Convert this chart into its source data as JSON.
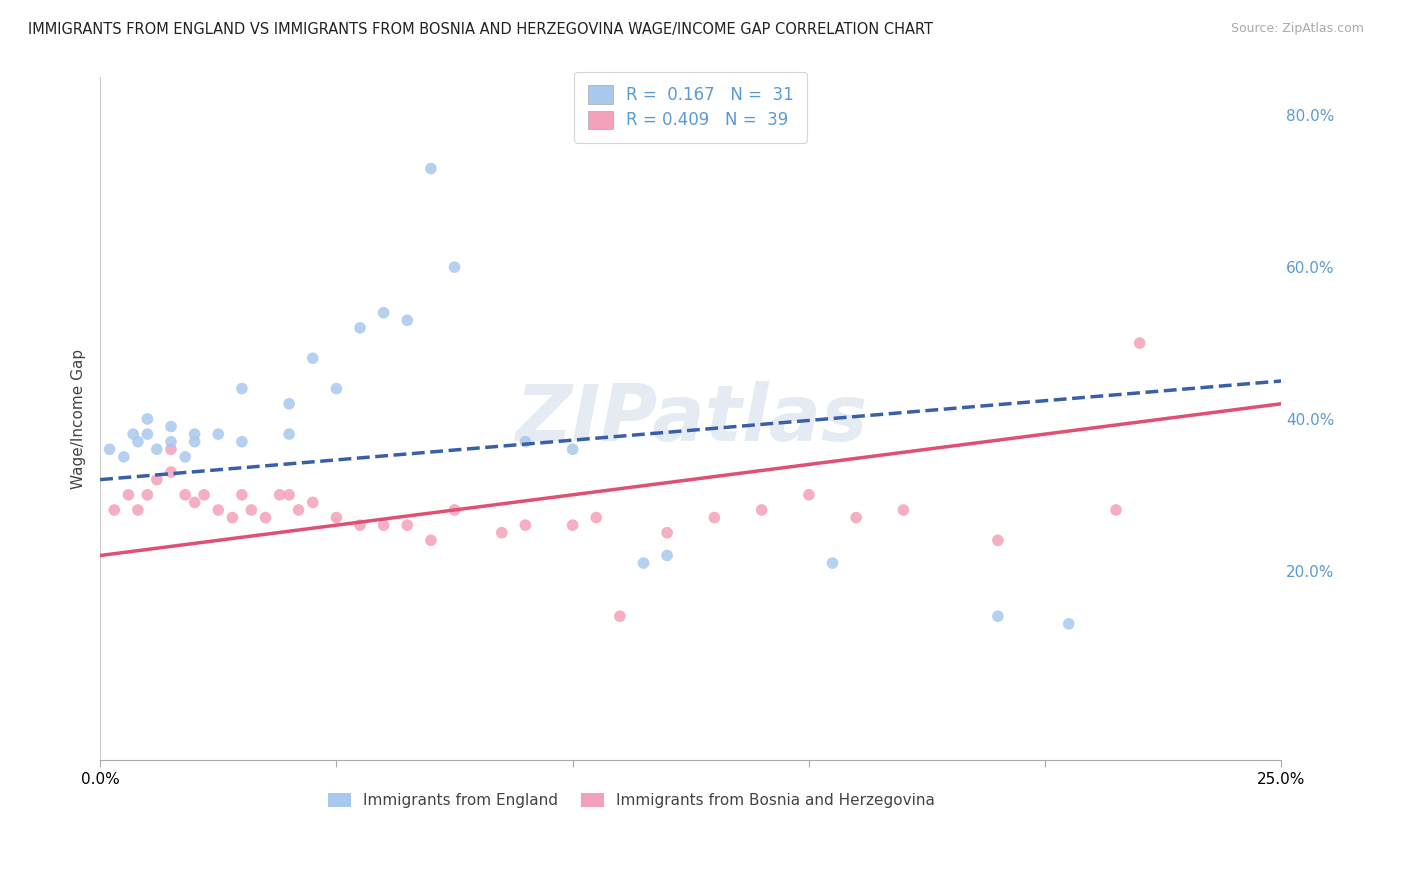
{
  "title": "IMMIGRANTS FROM ENGLAND VS IMMIGRANTS FROM BOSNIA AND HERZEGOVINA WAGE/INCOME GAP CORRELATION CHART",
  "source": "Source: ZipAtlas.com",
  "ylabel": "Wage/Income Gap",
  "xlim": [
    0.0,
    0.25
  ],
  "ylim": [
    -0.05,
    0.85
  ],
  "yticks": [
    0.0,
    0.2,
    0.4,
    0.6,
    0.8
  ],
  "yticklabels": [
    "",
    "20.0%",
    "40.0%",
    "60.0%",
    "80.0%"
  ],
  "watermark": "ZIPatlas",
  "legend_R1": "0.167",
  "legend_N1": "31",
  "legend_R2": "0.409",
  "legend_N2": "39",
  "color_england": "#a8c8ee",
  "color_bosnia": "#f4a0b8",
  "line_color_england": "#3a5faa",
  "line_color_bosnia": "#e05070",
  "scatter_england_x": [
    0.002,
    0.005,
    0.007,
    0.008,
    0.01,
    0.01,
    0.012,
    0.015,
    0.015,
    0.018,
    0.02,
    0.02,
    0.025,
    0.03,
    0.03,
    0.04,
    0.04,
    0.045,
    0.05,
    0.055,
    0.06,
    0.065,
    0.07,
    0.075,
    0.09,
    0.1,
    0.115,
    0.12,
    0.155,
    0.19,
    0.205
  ],
  "scatter_england_y": [
    0.36,
    0.35,
    0.38,
    0.37,
    0.38,
    0.4,
    0.36,
    0.37,
    0.39,
    0.35,
    0.37,
    0.38,
    0.38,
    0.37,
    0.44,
    0.38,
    0.42,
    0.48,
    0.44,
    0.52,
    0.54,
    0.53,
    0.73,
    0.6,
    0.37,
    0.36,
    0.21,
    0.22,
    0.21,
    0.14,
    0.13
  ],
  "scatter_bosnia_x": [
    0.003,
    0.006,
    0.008,
    0.01,
    0.012,
    0.015,
    0.015,
    0.018,
    0.02,
    0.022,
    0.025,
    0.028,
    0.03,
    0.032,
    0.035,
    0.038,
    0.04,
    0.042,
    0.045,
    0.05,
    0.055,
    0.06,
    0.065,
    0.07,
    0.075,
    0.085,
    0.09,
    0.1,
    0.105,
    0.11,
    0.12,
    0.13,
    0.14,
    0.15,
    0.16,
    0.17,
    0.19,
    0.215,
    0.22
  ],
  "scatter_bosnia_y": [
    0.28,
    0.3,
    0.28,
    0.3,
    0.32,
    0.36,
    0.33,
    0.3,
    0.29,
    0.3,
    0.28,
    0.27,
    0.3,
    0.28,
    0.27,
    0.3,
    0.3,
    0.28,
    0.29,
    0.27,
    0.26,
    0.26,
    0.26,
    0.24,
    0.28,
    0.25,
    0.26,
    0.26,
    0.27,
    0.14,
    0.25,
    0.27,
    0.28,
    0.3,
    0.27,
    0.28,
    0.24,
    0.28,
    0.5
  ],
  "england_line_x0": 0.0,
  "england_line_y0": 0.32,
  "england_line_x1": 0.25,
  "england_line_y1": 0.45,
  "bosnia_line_x0": 0.0,
  "bosnia_line_y0": 0.22,
  "bosnia_line_x1": 0.25,
  "bosnia_line_y1": 0.42,
  "background_color": "#ffffff",
  "grid_color": "#cccccc"
}
